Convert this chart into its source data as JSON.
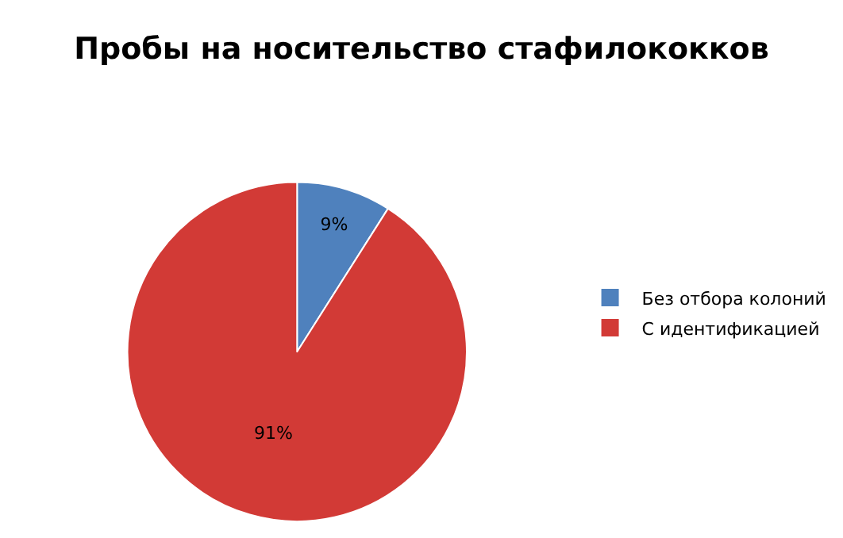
{
  "chart_data": {
    "type": "pie",
    "title": "Пробы на носительство стафилококков",
    "categories": [
      "Без отбора колоний",
      "С идентификацией"
    ],
    "values": [
      9,
      91
    ],
    "colors": [
      "#4f81bd",
      "#d23a36"
    ],
    "value_labels": [
      "9%",
      "91%"
    ],
    "legend": "right"
  }
}
